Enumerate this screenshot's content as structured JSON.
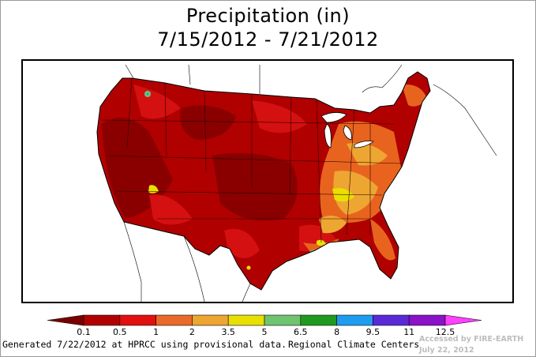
{
  "map": {
    "title_line1": "Precipitation (in)",
    "title_line2": "7/15/2012 - 7/21/2012",
    "legend": {
      "bins": [
        {
          "color": "#7a0000"
        },
        {
          "color": "#b00000"
        },
        {
          "color": "#e31010"
        },
        {
          "color": "#ea6a2a"
        },
        {
          "color": "#eda632"
        },
        {
          "color": "#e8e000"
        },
        {
          "color": "#6fc46f"
        },
        {
          "color": "#1f9a1f"
        },
        {
          "color": "#1e9cf0"
        },
        {
          "color": "#5a2ad8"
        },
        {
          "color": "#8a12c8"
        },
        {
          "color": "#ff40ff"
        }
      ],
      "tick_labels": [
        "0.1",
        "0.5",
        "1",
        "2",
        "3.5",
        "5",
        "6.5",
        "8",
        "9.5",
        "11",
        "12.5"
      ]
    },
    "footer_left": "Generated 7/22/2012 at HPRCC using provisional data.",
    "footer_right": "Regional Climate Centers",
    "watermark_line1": "Accessed by FIRE-EARTH",
    "watermark_line2": "July 22, 2012"
  }
}
